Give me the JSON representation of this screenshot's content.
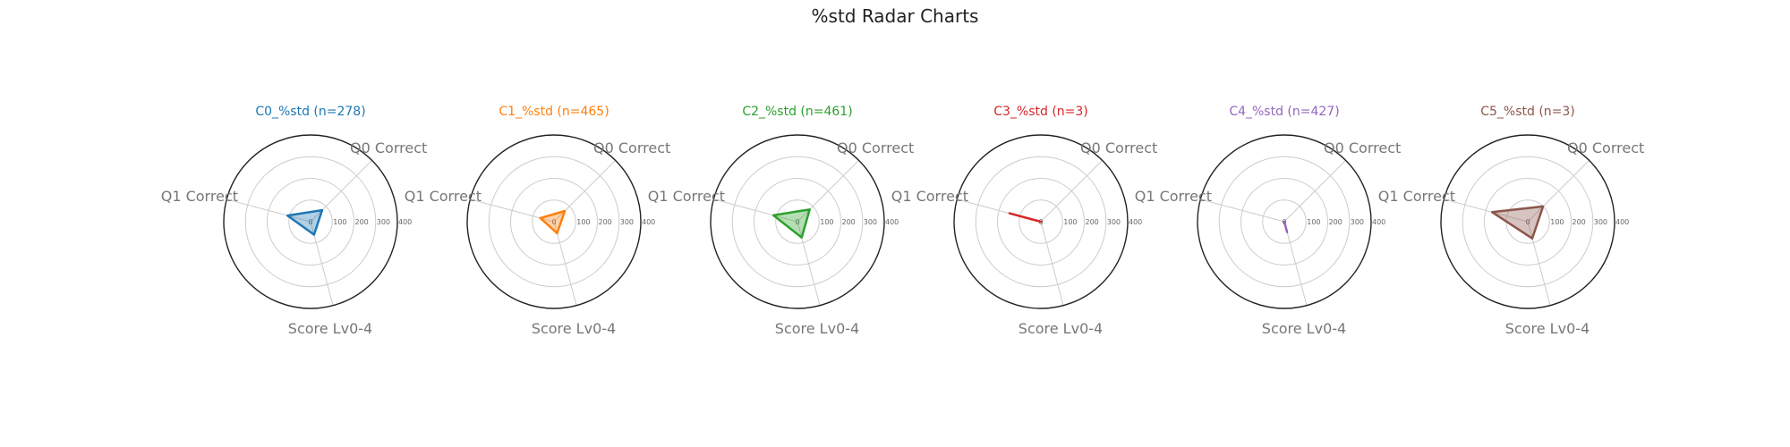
{
  "title": "%std Radar Charts",
  "chart_data": [
    {
      "type": "radar",
      "title": "C0_%std (n=278)",
      "color": "#1f77b4",
      "axes": [
        "Q0 Correct",
        "Q1 Correct",
        "Score Lv0-4"
      ],
      "values": [
        75,
        110,
        62
      ],
      "rmax": 400,
      "ticks": [
        "0",
        "100",
        "200",
        "300",
        "400"
      ],
      "grid": true
    },
    {
      "type": "radar",
      "title": "C1_%std (n=465)",
      "color": "#ff7f0e",
      "axes": [
        "Q0 Correct",
        "Q1 Correct",
        "Score Lv0-4"
      ],
      "values": [
        70,
        65,
        55
      ],
      "rmax": 400,
      "ticks": [
        "0",
        "100",
        "200",
        "300",
        "400"
      ],
      "grid": true
    },
    {
      "type": "radar",
      "title": "C2_%std (n=461)",
      "color": "#2ca02c",
      "axes": [
        "Q0 Correct",
        "Q1 Correct",
        "Score Lv0-4"
      ],
      "values": [
        80,
        115,
        75
      ],
      "rmax": 400,
      "ticks": [
        "0",
        "100",
        "200",
        "300",
        "400"
      ],
      "grid": true
    },
    {
      "type": "radar",
      "title": "C3_%std (n=3)",
      "color": "#d62728",
      "axes": [
        "Q0 Correct",
        "Q1 Correct",
        "Score Lv0-4"
      ],
      "values": [
        0,
        150,
        0
      ],
      "rmax": 400,
      "ticks": [
        "0",
        "100",
        "200",
        "300",
        "400"
      ],
      "grid": true
    },
    {
      "type": "radar",
      "title": "C4_%std (n=427)",
      "color": "#9467bd",
      "axes": [
        "Q0 Correct",
        "Q1 Correct",
        "Score Lv0-4"
      ],
      "values": [
        0,
        0,
        50
      ],
      "rmax": 400,
      "ticks": [
        "0",
        "100",
        "200",
        "300",
        "400"
      ],
      "grid": true
    },
    {
      "type": "radar",
      "title": "C5_%std (n=3)",
      "color": "#8c564b",
      "axes": [
        "Q0 Correct",
        "Q1 Correct",
        "Score Lv0-4"
      ],
      "values": [
        100,
        170,
        80
      ],
      "rmax": 400,
      "ticks": [
        "0",
        "100",
        "200",
        "300",
        "400"
      ],
      "grid": true
    }
  ]
}
